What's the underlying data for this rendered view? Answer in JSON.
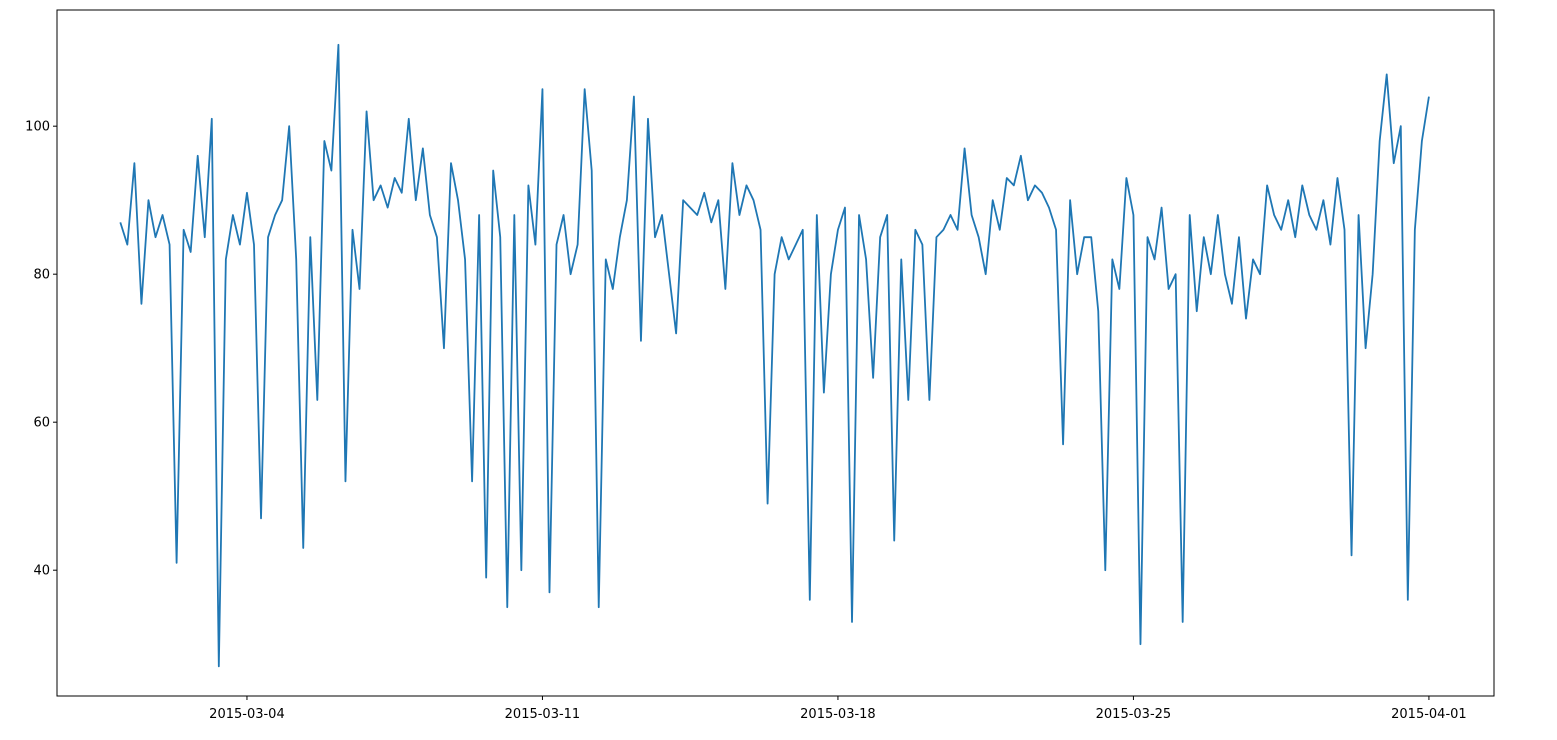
{
  "chart_data": {
    "type": "line",
    "x": [
      "2015-03-01 00:00",
      "2015-03-01 04:00",
      "2015-03-01 08:00",
      "2015-03-01 12:00",
      "2015-03-01 16:00",
      "2015-03-01 20:00",
      "2015-03-02 00:00",
      "2015-03-02 04:00",
      "2015-03-02 08:00",
      "2015-03-02 12:00",
      "2015-03-02 16:00",
      "2015-03-02 20:00",
      "2015-03-03 00:00",
      "2015-03-03 04:00",
      "2015-03-03 08:00",
      "2015-03-03 12:00",
      "2015-03-03 16:00",
      "2015-03-03 20:00",
      "2015-03-04 00:00",
      "2015-03-04 04:00",
      "2015-03-04 08:00",
      "2015-03-04 12:00",
      "2015-03-04 16:00",
      "2015-03-04 20:00",
      "2015-03-05 00:00",
      "2015-03-05 04:00",
      "2015-03-05 08:00",
      "2015-03-05 12:00",
      "2015-03-05 16:00",
      "2015-03-05 20:00",
      "2015-03-06 00:00",
      "2015-03-06 04:00",
      "2015-03-06 08:00",
      "2015-03-06 12:00",
      "2015-03-06 16:00",
      "2015-03-06 20:00",
      "2015-03-07 00:00",
      "2015-03-07 04:00",
      "2015-03-07 08:00",
      "2015-03-07 12:00",
      "2015-03-07 16:00",
      "2015-03-07 20:00",
      "2015-03-08 00:00",
      "2015-03-08 04:00",
      "2015-03-08 08:00",
      "2015-03-08 12:00",
      "2015-03-08 16:00",
      "2015-03-08 20:00",
      "2015-03-09 00:00",
      "2015-03-09 04:00",
      "2015-03-09 08:00",
      "2015-03-09 12:00",
      "2015-03-09 16:00",
      "2015-03-09 20:00",
      "2015-03-10 00:00",
      "2015-03-10 04:00",
      "2015-03-10 08:00",
      "2015-03-10 12:00",
      "2015-03-10 16:00",
      "2015-03-10 20:00",
      "2015-03-11 00:00",
      "2015-03-11 04:00",
      "2015-03-11 08:00",
      "2015-03-11 12:00",
      "2015-03-11 16:00",
      "2015-03-11 20:00",
      "2015-03-12 00:00",
      "2015-03-12 04:00",
      "2015-03-12 08:00",
      "2015-03-12 12:00",
      "2015-03-12 16:00",
      "2015-03-12 20:00",
      "2015-03-13 00:00",
      "2015-03-13 04:00",
      "2015-03-13 08:00",
      "2015-03-13 12:00",
      "2015-03-13 16:00",
      "2015-03-13 20:00",
      "2015-03-14 00:00",
      "2015-03-14 04:00",
      "2015-03-14 08:00",
      "2015-03-14 12:00",
      "2015-03-14 16:00",
      "2015-03-14 20:00",
      "2015-03-15 00:00",
      "2015-03-15 04:00",
      "2015-03-15 08:00",
      "2015-03-15 12:00",
      "2015-03-15 16:00",
      "2015-03-15 20:00",
      "2015-03-16 00:00",
      "2015-03-16 04:00",
      "2015-03-16 08:00",
      "2015-03-16 12:00",
      "2015-03-16 16:00",
      "2015-03-16 20:00",
      "2015-03-17 00:00",
      "2015-03-17 04:00",
      "2015-03-17 08:00",
      "2015-03-17 12:00",
      "2015-03-17 16:00",
      "2015-03-17 20:00",
      "2015-03-18 00:00",
      "2015-03-18 04:00",
      "2015-03-18 08:00",
      "2015-03-18 12:00",
      "2015-03-18 16:00",
      "2015-03-18 20:00",
      "2015-03-19 00:00",
      "2015-03-19 04:00",
      "2015-03-19 08:00",
      "2015-03-19 12:00",
      "2015-03-19 16:00",
      "2015-03-19 20:00",
      "2015-03-20 00:00",
      "2015-03-20 04:00",
      "2015-03-20 08:00",
      "2015-03-20 12:00",
      "2015-03-20 16:00",
      "2015-03-20 20:00",
      "2015-03-21 00:00",
      "2015-03-21 04:00",
      "2015-03-21 08:00",
      "2015-03-21 12:00",
      "2015-03-21 16:00",
      "2015-03-21 20:00",
      "2015-03-22 00:00",
      "2015-03-22 04:00",
      "2015-03-22 08:00",
      "2015-03-22 12:00",
      "2015-03-22 16:00",
      "2015-03-22 20:00",
      "2015-03-23 00:00",
      "2015-03-23 04:00",
      "2015-03-23 08:00",
      "2015-03-23 12:00",
      "2015-03-23 16:00",
      "2015-03-23 20:00",
      "2015-03-24 00:00",
      "2015-03-24 04:00",
      "2015-03-24 08:00",
      "2015-03-24 12:00",
      "2015-03-24 16:00",
      "2015-03-24 20:00",
      "2015-03-25 00:00",
      "2015-03-25 04:00",
      "2015-03-25 08:00",
      "2015-03-25 12:00",
      "2015-03-25 16:00",
      "2015-03-25 20:00",
      "2015-03-26 00:00",
      "2015-03-26 04:00",
      "2015-03-26 08:00",
      "2015-03-26 12:00",
      "2015-03-26 16:00",
      "2015-03-26 20:00",
      "2015-03-27 00:00",
      "2015-03-27 04:00",
      "2015-03-27 08:00",
      "2015-03-27 12:00",
      "2015-03-27 16:00",
      "2015-03-27 20:00",
      "2015-03-28 00:00",
      "2015-03-28 04:00",
      "2015-03-28 08:00",
      "2015-03-28 12:00",
      "2015-03-28 16:00",
      "2015-03-28 20:00",
      "2015-03-29 00:00",
      "2015-03-29 04:00",
      "2015-03-29 08:00",
      "2015-03-29 12:00",
      "2015-03-29 16:00",
      "2015-03-29 20:00",
      "2015-03-30 00:00",
      "2015-03-30 04:00",
      "2015-03-30 08:00",
      "2015-03-30 12:00",
      "2015-03-30 16:00",
      "2015-03-30 20:00",
      "2015-03-31 00:00",
      "2015-03-31 04:00",
      "2015-03-31 08:00",
      "2015-03-31 12:00",
      "2015-03-31 16:00",
      "2015-03-31 20:00",
      "2015-04-01 00:00"
    ],
    "series": [
      {
        "color": "#1f77b4",
        "values": [
          87,
          84,
          95,
          76,
          90,
          85,
          88,
          84,
          41,
          86,
          83,
          96,
          85,
          101,
          27,
          82,
          88,
          84,
          91,
          84,
          47,
          85,
          88,
          90,
          100,
          82,
          43,
          85,
          63,
          98,
          94,
          111,
          52,
          86,
          78,
          102,
          90,
          92,
          89,
          93,
          91,
          101,
          90,
          97,
          88,
          85,
          70,
          95,
          90,
          82,
          52,
          88,
          39,
          94,
          85,
          35,
          88,
          40,
          92,
          84,
          105,
          37,
          84,
          88,
          80,
          84,
          105,
          94,
          35,
          82,
          78,
          85,
          90,
          104,
          71,
          101,
          85,
          88,
          80,
          72,
          90,
          89,
          88,
          91,
          87,
          90,
          78,
          95,
          88,
          92,
          90,
          86,
          49,
          80,
          85,
          82,
          84,
          86,
          36,
          88,
          64,
          80,
          86,
          89,
          33,
          88,
          82,
          66,
          85,
          88,
          44,
          82,
          63,
          86,
          84,
          63,
          85,
          86,
          88,
          86,
          97,
          88,
          85,
          80,
          90,
          86,
          93,
          92,
          96,
          90,
          92,
          91,
          89,
          86,
          57,
          90,
          80,
          85,
          85,
          75,
          40,
          82,
          78,
          93,
          88,
          30,
          85,
          82,
          89,
          78,
          80,
          33,
          88,
          75,
          85,
          80,
          88,
          80,
          76,
          85,
          74,
          82,
          80,
          92,
          88,
          86,
          90,
          85,
          92,
          88,
          86,
          90,
          84,
          93,
          86,
          42,
          88,
          70,
          80,
          98,
          107,
          95,
          100,
          36,
          86,
          98,
          104
        ]
      }
    ],
    "xlim": [
      "2015-02-27 12:00",
      "2015-04-02 13:00"
    ],
    "xticks": [
      "2015-03-04",
      "2015-03-11",
      "2015-03-18",
      "2015-03-25",
      "2015-04-01"
    ],
    "ylim": [
      23,
      115.7
    ],
    "yticks": [
      40,
      60,
      80,
      100
    ]
  }
}
